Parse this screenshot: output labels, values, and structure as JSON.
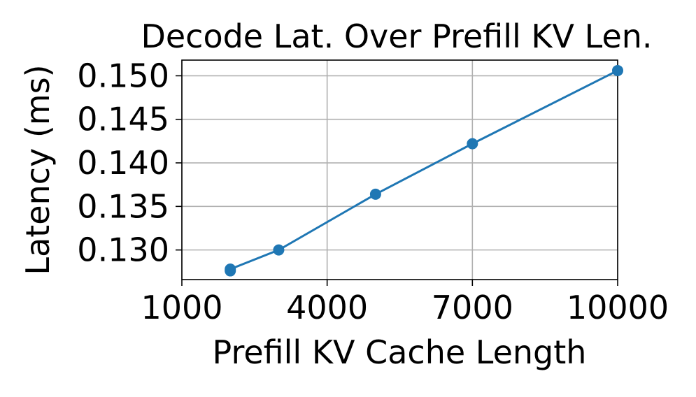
{
  "chart_data": {
    "type": "line",
    "title": "Decode Lat. Over Prefill KV Len.",
    "xlabel": "Prefill KV Cache Length",
    "ylabel": "Latency (ms)",
    "xlim": [
      1000,
      10000
    ],
    "ylim": [
      0.1266,
      0.1518
    ],
    "xticks": [
      1000,
      4000,
      7000,
      10000
    ],
    "xtick_labels": [
      "1000",
      "4000",
      "7000",
      "10000"
    ],
    "yticks": [
      0.13,
      0.135,
      0.14,
      0.145,
      0.15
    ],
    "ytick_labels": [
      "0.130",
      "0.135",
      "0.140",
      "0.145",
      "0.150"
    ],
    "grid": true,
    "legend": "none",
    "series": [
      {
        "color": "#1f77b4",
        "marker": "circle",
        "x": [
          2000,
          2000,
          3000,
          5000,
          7000,
          10000
        ],
        "y": [
          0.1276,
          0.1278,
          0.13,
          0.1364,
          0.1422,
          0.1506
        ]
      }
    ]
  }
}
